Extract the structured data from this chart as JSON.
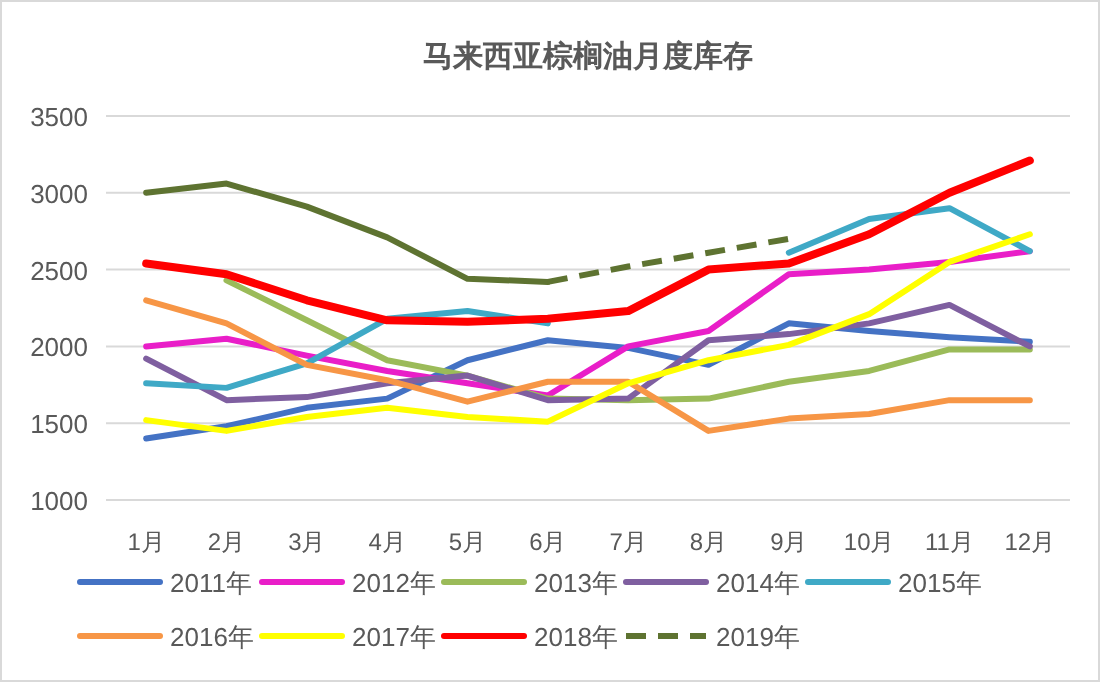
{
  "chart_data": {
    "type": "line",
    "title": "马来西亚棕榈油月度库存",
    "categories": [
      "1月",
      "2月",
      "3月",
      "4月",
      "5月",
      "6月",
      "7月",
      "8月",
      "9月",
      "10月",
      "11月",
      "12月"
    ],
    "ylim": [
      1000,
      3500
    ],
    "yticks": [
      1000,
      1500,
      2000,
      2500,
      3000,
      3500
    ],
    "grid": "y",
    "legend": "bottom",
    "line_style": "solid",
    "marker": "none",
    "series": [
      {
        "name": "2011年",
        "color": "#4472c4",
        "values": [
          1400,
          1480,
          1600,
          1660,
          1910,
          2040,
          1990,
          1880,
          2150,
          2100,
          2060,
          2030
        ]
      },
      {
        "name": "2012年",
        "color": "#e91ec8",
        "values": [
          2000,
          2050,
          1940,
          1840,
          1760,
          1680,
          2000,
          2100,
          2470,
          2500,
          2550,
          2620
        ]
      },
      {
        "name": "2013年",
        "color": "#9bbb59",
        "values": [
          null,
          2430,
          2170,
          1910,
          1810,
          1660,
          1650,
          1660,
          1770,
          1840,
          1980,
          1980
        ]
      },
      {
        "name": "2014年",
        "color": "#7f5fa0",
        "values": [
          1920,
          1650,
          1670,
          1760,
          1810,
          1650,
          1660,
          2040,
          2080,
          2150,
          2270,
          2000
        ]
      },
      {
        "name": "2015年",
        "color": "#3fa9c6",
        "values": [
          1760,
          1730,
          1890,
          2180,
          2230,
          2150,
          null,
          null,
          2610,
          2830,
          2900,
          2620
        ]
      },
      {
        "name": "2016年",
        "color": "#f79646",
        "values": [
          2300,
          2150,
          1880,
          1780,
          1640,
          1770,
          1770,
          1450,
          1530,
          1560,
          1650,
          1650
        ]
      },
      {
        "name": "2017年",
        "color": "#ffff00",
        "values": [
          1520,
          1450,
          1540,
          1600,
          1540,
          1510,
          1760,
          1910,
          2010,
          2210,
          2550,
          2730
        ]
      },
      {
        "name": "2018年",
        "color": "#ff0000",
        "values": [
          2540,
          2470,
          2300,
          2170,
          2160,
          2180,
          2230,
          2500,
          2540,
          2730,
          3000,
          3210
        ]
      },
      {
        "color": "#5e7331",
        "values": [
          3000,
          3060,
          2910,
          2710,
          2440,
          2420,
          null,
          null,
          null,
          null,
          null,
          null
        ]
      },
      {
        "name": "2019年",
        "color": "#5e7331",
        "line_style": "dashed",
        "values": [
          null,
          null,
          null,
          null,
          null,
          2420,
          2520,
          2610,
          2700,
          null,
          null,
          null
        ]
      }
    ]
  }
}
